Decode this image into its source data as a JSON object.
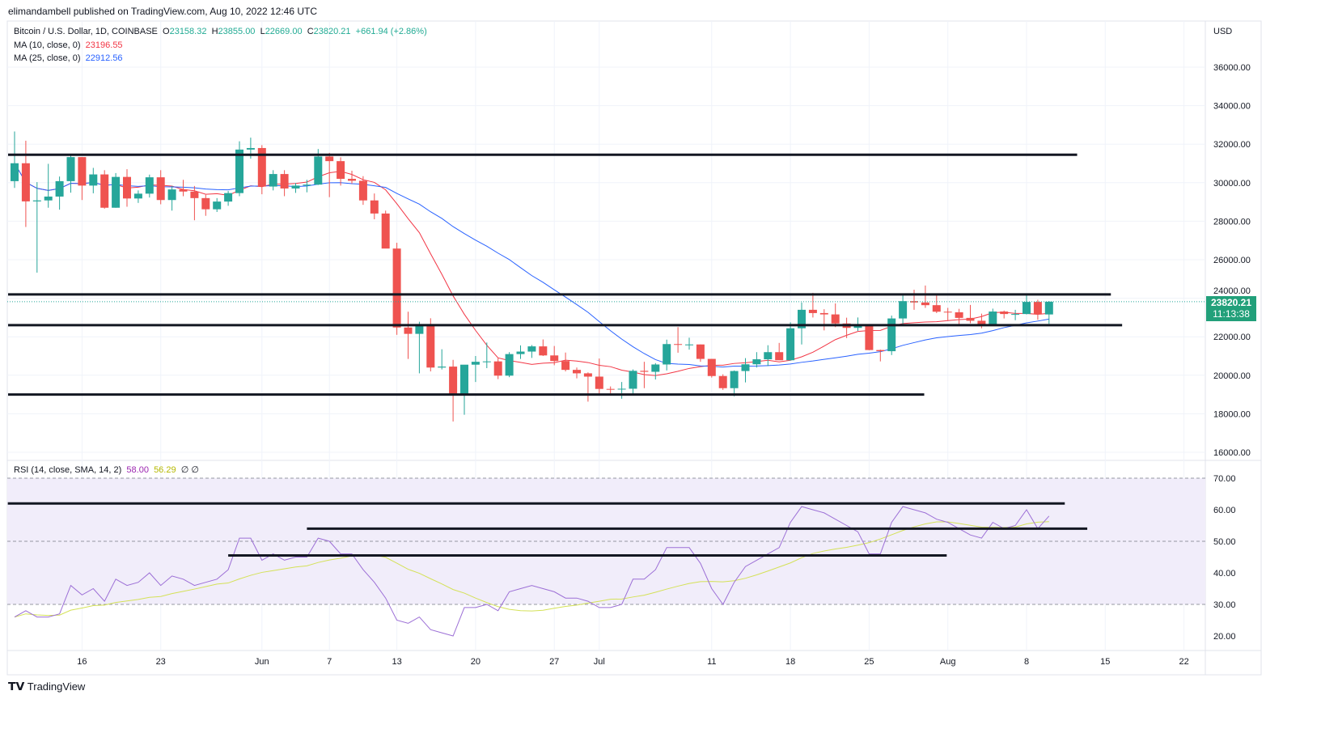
{
  "header": {
    "published": "elimandambell published on TradingView.com, Aug 10, 2022 12:46 UTC"
  },
  "legend": {
    "symbol": "Bitcoin / U.S. Dollar, 1D, COINBASE",
    "o_label": "O",
    "o": "23158.32",
    "h_label": "H",
    "h": "23855.00",
    "l_label": "L",
    "l": "22669.00",
    "c_label": "C",
    "c": "23820.21",
    "change": "+661.94 (+2.86%)",
    "ma10_label": "MA (10, close, 0)",
    "ma10": "23196.55",
    "ma25_label": "MA (25, close, 0)",
    "ma25": "22912.56",
    "rsi_label": "RSI (14, close, SMA, 14, 2)",
    "rsi": "58.00",
    "rsi_sma": "56.29",
    "rsi_extra": "∅ ∅"
  },
  "price_axis": {
    "currency": "USD",
    "last_price": "23820.21",
    "countdown": "11:13:38"
  },
  "footer": {
    "brand": "TradingView"
  },
  "colors": {
    "up": "#26a69a",
    "down": "#ef5350",
    "ma10": "#f23645",
    "ma25": "#2962ff",
    "rsi": "#9c6fd6",
    "rsi_sma": "#d4e157",
    "rsi_bg": "#f1edfa"
  },
  "chart_data": {
    "type": "candlestick",
    "title": "Bitcoin / U.S. Dollar, 1D, COINBASE",
    "start_date": "2022-05-10",
    "ylim": [
      15500,
      37200
    ],
    "price_ticks": [
      16000,
      18000,
      20000,
      22000,
      24000,
      26000,
      28000,
      30000,
      32000,
      34000,
      36000
    ],
    "x_ticks": [
      {
        "label": "16",
        "day": 6
      },
      {
        "label": "23",
        "day": 13
      },
      {
        "label": "Jun",
        "day": 22
      },
      {
        "label": "7",
        "day": 28
      },
      {
        "label": "13",
        "day": 34
      },
      {
        "label": "20",
        "day": 41
      },
      {
        "label": "27",
        "day": 48
      },
      {
        "label": "Jul",
        "day": 52
      },
      {
        "label": "11",
        "day": 62
      },
      {
        "label": "18",
        "day": 69
      },
      {
        "label": "25",
        "day": 76
      },
      {
        "label": "Aug",
        "day": 83
      },
      {
        "label": "8",
        "day": 90
      },
      {
        "label": "15",
        "day": 97
      },
      {
        "label": "22",
        "day": 104
      }
    ],
    "ohlc": [
      [
        30080,
        32660,
        29730,
        31010
      ],
      [
        31010,
        32180,
        27700,
        29030
      ],
      [
        29030,
        30030,
        25330,
        29080
      ],
      [
        29080,
        30980,
        28700,
        29280
      ],
      [
        29280,
        30320,
        28600,
        30080
      ],
      [
        30080,
        31400,
        29480,
        31330
      ],
      [
        31330,
        31330,
        29100,
        29850
      ],
      [
        29850,
        30770,
        29450,
        30430
      ],
      [
        30430,
        30650,
        28650,
        28700
      ],
      [
        28700,
        30500,
        28700,
        30300
      ],
      [
        30300,
        30700,
        28750,
        29180
      ],
      [
        29180,
        29600,
        28950,
        29430
      ],
      [
        29430,
        30420,
        29230,
        30280
      ],
      [
        30280,
        30650,
        28880,
        29100
      ],
      [
        29100,
        29830,
        28550,
        29650
      ],
      [
        29650,
        30150,
        29300,
        29540
      ],
      [
        29540,
        29830,
        28050,
        29200
      ],
      [
        29200,
        29370,
        28280,
        28620
      ],
      [
        28620,
        29200,
        28480,
        29020
      ],
      [
        29020,
        29570,
        28800,
        29460
      ],
      [
        29460,
        32150,
        29300,
        31720
      ],
      [
        31720,
        32340,
        31250,
        31800
      ],
      [
        31800,
        31950,
        29400,
        29800
      ],
      [
        29800,
        30650,
        29600,
        30450
      ],
      [
        30450,
        30650,
        29300,
        29700
      ],
      [
        29700,
        29980,
        29470,
        29850
      ],
      [
        29850,
        30150,
        29500,
        29900
      ],
      [
        29900,
        31750,
        29880,
        31360
      ],
      [
        31360,
        31550,
        29250,
        31120
      ],
      [
        31120,
        31320,
        29850,
        30200
      ],
      [
        30200,
        30620,
        29950,
        30100
      ],
      [
        30100,
        30340,
        28850,
        29080
      ],
      [
        29080,
        29440,
        28100,
        28400
      ],
      [
        28400,
        28550,
        26600,
        26580
      ],
      [
        26580,
        26880,
        22100,
        22480
      ],
      [
        22480,
        23300,
        20850,
        22150
      ],
      [
        22150,
        22780,
        20100,
        22580
      ],
      [
        22580,
        22960,
        20200,
        20400
      ],
      [
        20400,
        21350,
        20300,
        20450
      ],
      [
        20450,
        20800,
        17600,
        19000
      ],
      [
        19000,
        20500,
        17950,
        20550
      ],
      [
        20550,
        21000,
        19650,
        20700
      ],
      [
        20700,
        21700,
        20370,
        20720
      ],
      [
        20720,
        20880,
        19800,
        19980
      ],
      [
        19980,
        21200,
        19900,
        21100
      ],
      [
        21100,
        21550,
        20850,
        21230
      ],
      [
        21230,
        21570,
        20900,
        21500
      ],
      [
        21500,
        21860,
        21000,
        21030
      ],
      [
        21030,
        21520,
        20520,
        20740
      ],
      [
        20740,
        21180,
        20200,
        20280
      ],
      [
        20280,
        20400,
        19840,
        20100
      ],
      [
        20100,
        20150,
        18630,
        19930
      ],
      [
        19930,
        20870,
        18970,
        19290
      ],
      [
        19290,
        19420,
        19000,
        19260
      ],
      [
        19260,
        19650,
        18780,
        19300
      ],
      [
        19300,
        20300,
        19040,
        20230
      ],
      [
        20230,
        20700,
        19330,
        20180
      ],
      [
        20180,
        20630,
        19780,
        20560
      ],
      [
        20560,
        21850,
        20250,
        21620
      ],
      [
        21620,
        22500,
        21170,
        21590
      ],
      [
        21590,
        21950,
        21330,
        21600
      ],
      [
        21600,
        21600,
        20700,
        20850
      ],
      [
        20850,
        20850,
        19880,
        19960
      ],
      [
        19960,
        20050,
        19240,
        19330
      ],
      [
        19330,
        20250,
        18910,
        20220
      ],
      [
        20220,
        20890,
        19630,
        20570
      ],
      [
        20570,
        21200,
        20400,
        20830
      ],
      [
        20830,
        21560,
        20480,
        21200
      ],
      [
        21200,
        21680,
        20780,
        20780
      ],
      [
        20780,
        22750,
        20760,
        22440
      ],
      [
        22440,
        23780,
        21600,
        23400
      ],
      [
        23400,
        24280,
        23000,
        23230
      ],
      [
        23230,
        23430,
        22330,
        23160
      ],
      [
        23160,
        23730,
        22500,
        22690
      ],
      [
        22690,
        22990,
        21930,
        22460
      ],
      [
        22460,
        23000,
        22300,
        22580
      ],
      [
        22580,
        22600,
        21300,
        21310
      ],
      [
        21310,
        21330,
        20720,
        21250
      ],
      [
        21250,
        23100,
        21050,
        22950
      ],
      [
        22950,
        24200,
        22580,
        23850
      ],
      [
        23850,
        24440,
        23400,
        23780
      ],
      [
        23780,
        24660,
        23500,
        23640
      ],
      [
        23640,
        24190,
        23230,
        23300
      ],
      [
        23300,
        23500,
        22850,
        23270
      ],
      [
        23270,
        23450,
        22660,
        22980
      ],
      [
        22980,
        23650,
        22700,
        22830
      ],
      [
        22830,
        23200,
        22440,
        22620
      ],
      [
        22620,
        23460,
        22600,
        23310
      ],
      [
        23310,
        23360,
        22950,
        23180
      ],
      [
        23180,
        23400,
        22860,
        23180
      ],
      [
        23180,
        24230,
        23160,
        23810
      ],
      [
        23810,
        23920,
        22880,
        23160
      ],
      [
        23158,
        23855,
        22669,
        23820
      ]
    ],
    "price_levels": [
      {
        "price": 31450,
        "from_day": 0,
        "to_day": 94.5
      },
      {
        "price": 24200,
        "from_day": 0,
        "to_day": 97.5
      },
      {
        "price": 22600,
        "from_day": 0,
        "to_day": 98.5
      },
      {
        "price": 19000,
        "from_day": 0,
        "to_day": 80.9
      }
    ],
    "rsi": {
      "ylim": [
        15,
        75
      ],
      "ticks": [
        20,
        30,
        40,
        50,
        60,
        70
      ],
      "band": [
        30,
        70
      ],
      "mid": 50,
      "values": [
        26,
        28,
        26,
        26,
        27,
        36,
        33,
        35,
        31,
        38,
        36,
        37,
        40,
        36,
        39,
        38,
        36,
        37,
        38,
        41,
        51,
        51,
        44,
        46,
        44,
        45,
        45,
        51,
        50,
        46,
        46,
        41,
        37,
        32,
        25,
        24,
        26,
        22,
        21,
        20,
        29,
        29,
        30,
        28,
        34,
        35,
        36,
        35,
        34,
        32,
        32,
        31,
        29,
        29,
        30,
        38,
        38,
        41,
        48,
        48,
        48,
        43,
        35,
        30,
        37,
        42,
        44,
        46,
        48,
        56,
        61,
        60,
        59,
        57,
        55,
        53,
        46,
        46,
        56,
        61,
        60,
        59,
        57,
        56,
        54,
        52,
        51,
        56,
        54,
        55,
        60,
        54,
        58
      ],
      "levels": [
        {
          "value": 62,
          "from_day": -0.6,
          "to_day": 93.4
        },
        {
          "value": 54,
          "from_day": 26,
          "to_day": 95.4
        },
        {
          "value": 45.5,
          "from_day": 19,
          "to_day": 82.9
        }
      ]
    }
  }
}
